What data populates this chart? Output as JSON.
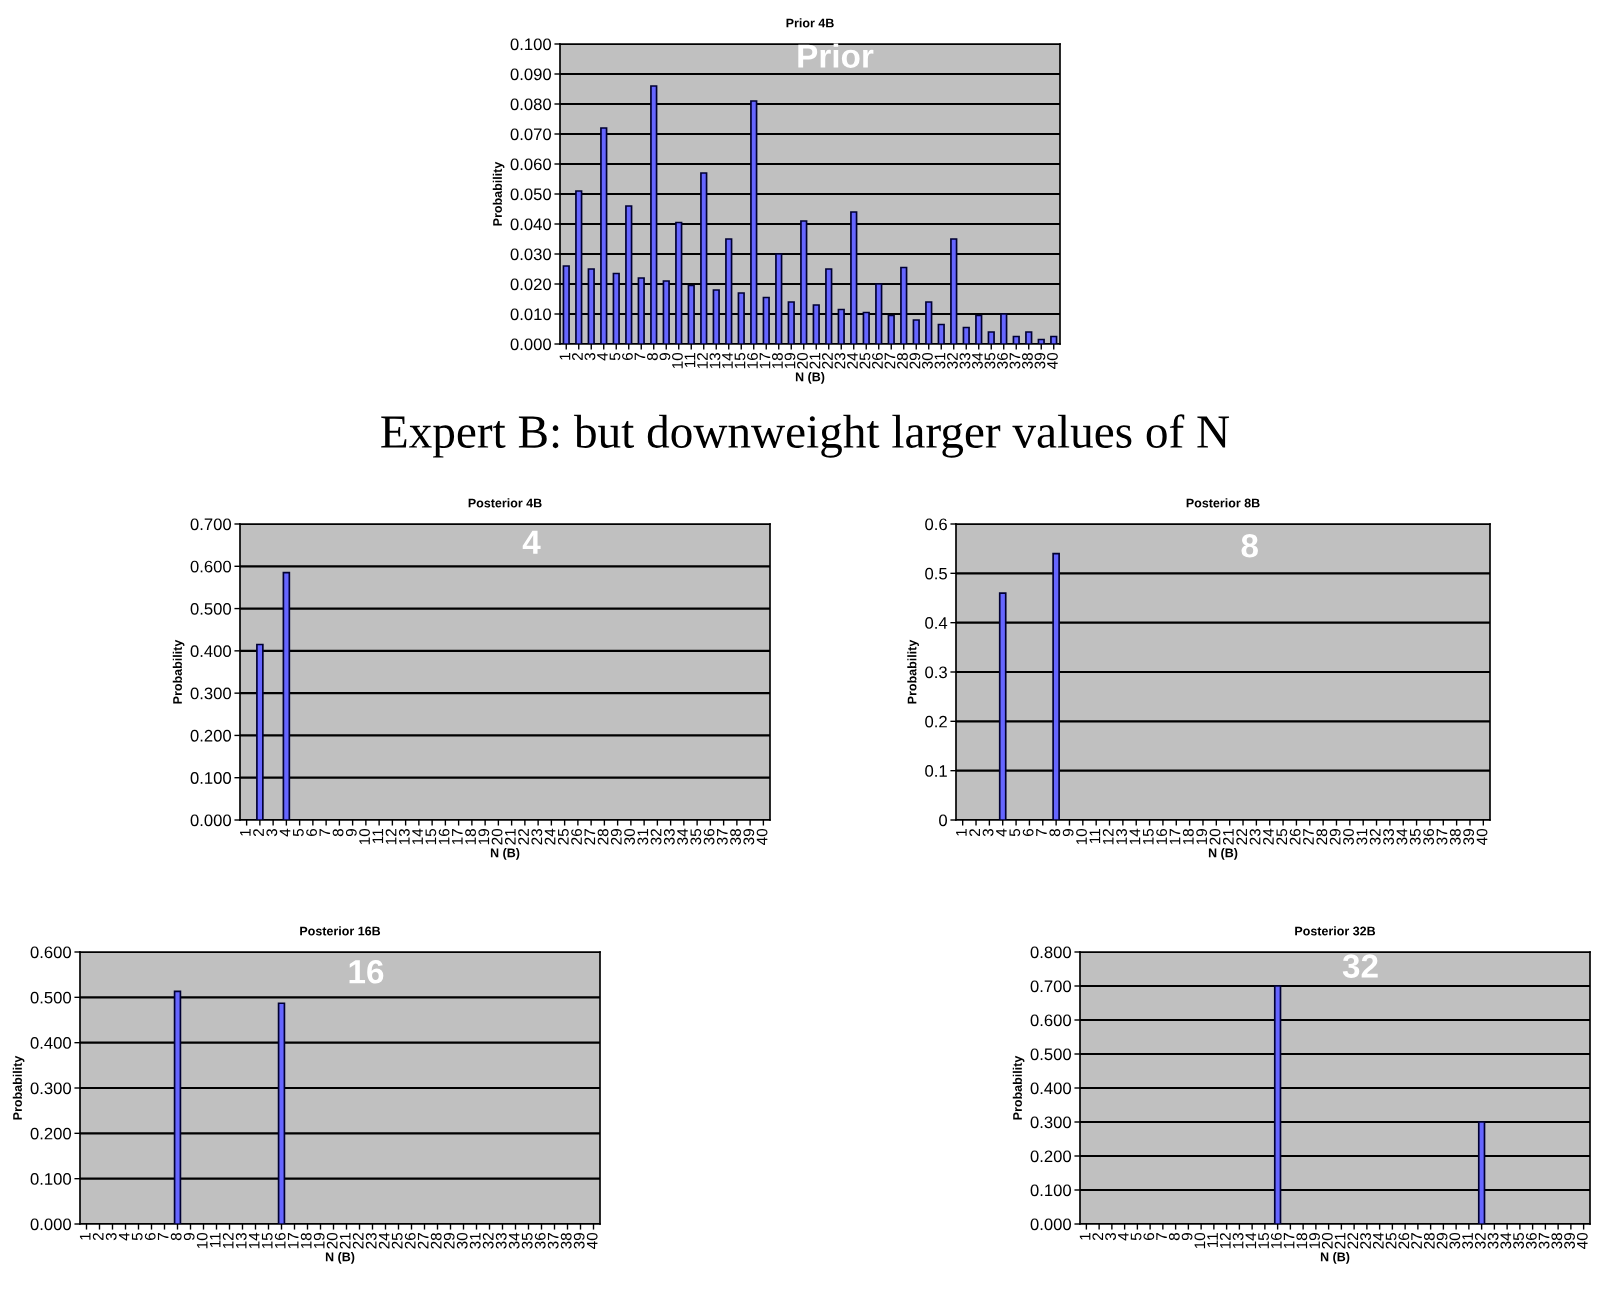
{
  "chart_data": [
    {
      "type": "bar",
      "title": "Prior 4B",
      "xlabel": "N (B)",
      "ylabel": "Probability",
      "categories": [
        "1",
        "2",
        "3",
        "4",
        "5",
        "6",
        "7",
        "8",
        "9",
        "10",
        "11",
        "12",
        "13",
        "14",
        "15",
        "16",
        "17",
        "18",
        "19",
        "20",
        "21",
        "22",
        "23",
        "24",
        "25",
        "26",
        "27",
        "28",
        "29",
        "30",
        "31",
        "32",
        "33",
        "34",
        "35",
        "36",
        "37",
        "38",
        "39",
        "40"
      ],
      "values": [
        0.026,
        0.051,
        0.025,
        0.072,
        0.0235,
        0.046,
        0.022,
        0.086,
        0.021,
        0.0405,
        0.0195,
        0.057,
        0.018,
        0.035,
        0.017,
        0.081,
        0.0155,
        0.03,
        0.014,
        0.041,
        0.013,
        0.025,
        0.0115,
        0.044,
        0.0105,
        0.02,
        0.0095,
        0.0255,
        0.008,
        0.014,
        0.0065,
        0.035,
        0.0055,
        0.0095,
        0.004,
        0.01,
        0.0025,
        0.004,
        0.0015,
        0.0025
      ],
      "color": "#6666ff",
      "ylim": [
        0,
        0.1
      ],
      "yticks": [
        {
          "value": 0,
          "label": "0.000"
        },
        {
          "value": 0.01,
          "label": "0.010"
        },
        {
          "value": 0.02,
          "label": "0.020"
        },
        {
          "value": 0.03,
          "label": "0.030"
        },
        {
          "value": 0.04,
          "label": "0.040"
        },
        {
          "value": 0.05,
          "label": "0.050"
        },
        {
          "value": 0.06,
          "label": "0.060"
        },
        {
          "value": 0.07,
          "label": "0.070"
        },
        {
          "value": 0.08,
          "label": "0.080"
        },
        {
          "value": 0.09,
          "label": "0.090"
        },
        {
          "value": 0.1,
          "label": "0.100"
        }
      ],
      "grid": "y",
      "annotations": [
        "Prior",
        "Expert B: but downweight larger values of N"
      ]
    },
    {
      "type": "bar",
      "title": "Posterior 4B",
      "xlabel": "N (B)",
      "ylabel": "Probability",
      "categories": [
        "1",
        "2",
        "3",
        "4",
        "5",
        "6",
        "7",
        "8",
        "9",
        "10",
        "11",
        "12",
        "13",
        "14",
        "15",
        "16",
        "17",
        "18",
        "19",
        "20",
        "21",
        "22",
        "23",
        "24",
        "25",
        "26",
        "27",
        "28",
        "29",
        "30",
        "31",
        "32",
        "33",
        "34",
        "35",
        "36",
        "37",
        "38",
        "39",
        "40"
      ],
      "values": [
        0,
        0.415,
        0,
        0.585,
        0,
        0,
        0,
        0,
        0,
        0,
        0,
        0,
        0,
        0,
        0,
        0,
        0,
        0,
        0,
        0,
        0,
        0,
        0,
        0,
        0,
        0,
        0,
        0,
        0,
        0,
        0,
        0,
        0,
        0,
        0,
        0,
        0,
        0,
        0,
        0
      ],
      "color": "#6666ff",
      "ylim": [
        0,
        0.7
      ],
      "yticks": [
        {
          "value": 0,
          "label": "0.000"
        },
        {
          "value": 0.1,
          "label": "0.100"
        },
        {
          "value": 0.2,
          "label": "0.200"
        },
        {
          "value": 0.3,
          "label": "0.300"
        },
        {
          "value": 0.4,
          "label": "0.400"
        },
        {
          "value": 0.5,
          "label": "0.500"
        },
        {
          "value": 0.6,
          "label": "0.600"
        },
        {
          "value": 0.7,
          "label": "0.700"
        }
      ],
      "grid": "y",
      "annotations": [
        "4"
      ]
    },
    {
      "type": "bar",
      "title": "Posterior 8B",
      "xlabel": "N (B)",
      "ylabel": "Probability",
      "categories": [
        "1",
        "2",
        "3",
        "4",
        "5",
        "6",
        "7",
        "8",
        "9",
        "10",
        "11",
        "12",
        "13",
        "14",
        "15",
        "16",
        "17",
        "18",
        "19",
        "20",
        "21",
        "22",
        "23",
        "24",
        "25",
        "26",
        "27",
        "28",
        "29",
        "30",
        "31",
        "32",
        "33",
        "34",
        "35",
        "36",
        "37",
        "38",
        "39",
        "40"
      ],
      "values": [
        0,
        0,
        0,
        0.46,
        0,
        0,
        0,
        0.54,
        0,
        0,
        0,
        0,
        0,
        0,
        0,
        0,
        0,
        0,
        0,
        0,
        0,
        0,
        0,
        0,
        0,
        0,
        0,
        0,
        0,
        0,
        0,
        0,
        0,
        0,
        0,
        0,
        0,
        0,
        0,
        0
      ],
      "color": "#6666ff",
      "ylim": [
        0,
        0.6
      ],
      "yticks": [
        0,
        0.1,
        0.2,
        0.3,
        0.4,
        0.5,
        0.6
      ],
      "grid": "y",
      "annotations": [
        "8"
      ]
    },
    {
      "type": "bar",
      "title": "Posterior 16B",
      "xlabel": "N (B)",
      "ylabel": "Probability",
      "categories": [
        "1",
        "2",
        "3",
        "4",
        "5",
        "6",
        "7",
        "8",
        "9",
        "10",
        "11",
        "12",
        "13",
        "14",
        "15",
        "16",
        "17",
        "18",
        "19",
        "20",
        "21",
        "22",
        "23",
        "24",
        "25",
        "26",
        "27",
        "28",
        "29",
        "30",
        "31",
        "32",
        "33",
        "34",
        "35",
        "36",
        "37",
        "38",
        "39",
        "40"
      ],
      "values": [
        0,
        0,
        0,
        0,
        0,
        0,
        0,
        0.513,
        0,
        0,
        0,
        0,
        0,
        0,
        0,
        0.487,
        0,
        0,
        0,
        0,
        0,
        0,
        0,
        0,
        0,
        0,
        0,
        0,
        0,
        0,
        0,
        0,
        0,
        0,
        0,
        0,
        0,
        0,
        0,
        0
      ],
      "color": "#6666ff",
      "ylim": [
        0,
        0.6
      ],
      "yticks": [
        {
          "value": 0,
          "label": "0.000"
        },
        {
          "value": 0.1,
          "label": "0.100"
        },
        {
          "value": 0.2,
          "label": "0.200"
        },
        {
          "value": 0.3,
          "label": "0.300"
        },
        {
          "value": 0.4,
          "label": "0.400"
        },
        {
          "value": 0.5,
          "label": "0.500"
        },
        {
          "value": 0.6,
          "label": "0.600"
        }
      ],
      "grid": "y",
      "annotations": [
        "16"
      ]
    },
    {
      "type": "bar",
      "title": "Posterior 32B",
      "xlabel": "N (B)",
      "ylabel": "Probability",
      "categories": [
        "1",
        "2",
        "3",
        "4",
        "5",
        "6",
        "7",
        "8",
        "9",
        "10",
        "11",
        "12",
        "13",
        "14",
        "15",
        "16",
        "17",
        "18",
        "19",
        "20",
        "21",
        "22",
        "23",
        "24",
        "25",
        "26",
        "27",
        "28",
        "29",
        "30",
        "31",
        "32",
        "33",
        "34",
        "35",
        "36",
        "37",
        "38",
        "39",
        "40"
      ],
      "values": [
        0,
        0,
        0,
        0,
        0,
        0,
        0,
        0,
        0,
        0,
        0,
        0,
        0,
        0,
        0,
        0.7,
        0,
        0,
        0,
        0,
        0,
        0,
        0,
        0,
        0,
        0,
        0,
        0,
        0,
        0,
        0,
        0.3,
        0,
        0,
        0,
        0,
        0,
        0,
        0,
        0
      ],
      "color": "#6666ff",
      "ylim": [
        0,
        0.8
      ],
      "yticks": [
        {
          "value": 0,
          "label": "0.000"
        },
        {
          "value": 0.1,
          "label": "0.100"
        },
        {
          "value": 0.2,
          "label": "0.200"
        },
        {
          "value": 0.3,
          "label": "0.300"
        },
        {
          "value": 0.4,
          "label": "0.400"
        },
        {
          "value": 0.5,
          "label": "0.500"
        },
        {
          "value": 0.6,
          "label": "0.600"
        },
        {
          "value": 0.7,
          "label": "0.700"
        },
        {
          "value": 0.8,
          "label": "0.800"
        }
      ],
      "grid": "y",
      "annotations": [
        "32"
      ]
    }
  ]
}
